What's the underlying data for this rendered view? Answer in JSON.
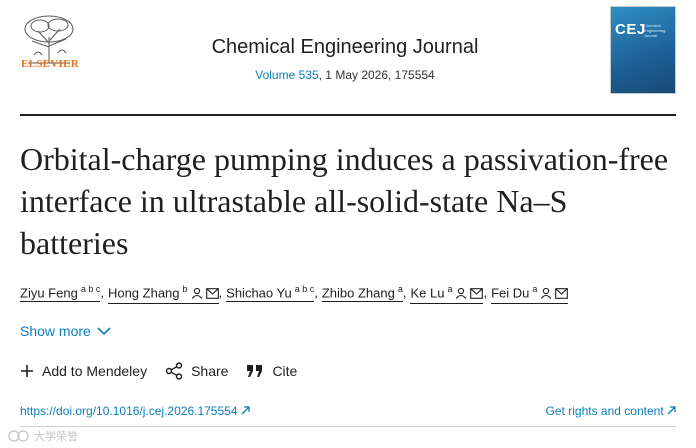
{
  "header": {
    "publisher_logo_text": "ELSEVIER",
    "journal_title": "Chemical Engineering Journal",
    "volume_link": "Volume 535",
    "issue_info": ", 1 May 2026, 175554",
    "cover_abbrev": "CEJ",
    "cover_subtitle": "Chemical Engineering Journal"
  },
  "article": {
    "title": "Orbital-charge pumping induces a passivation-free interface in ultrastable all-solid-state Na–S batteries"
  },
  "authors": [
    {
      "name": "Ziyu Feng",
      "affil": "a b c",
      "corresponding": false
    },
    {
      "name": "Hong Zhang",
      "affil": "b",
      "corresponding": true
    },
    {
      "name": "Shichao Yu",
      "affil": "a b c",
      "corresponding": false
    },
    {
      "name": "Zhibo Zhang",
      "affil": "a",
      "corresponding": false
    },
    {
      "name": "Ke Lu",
      "affil": "a",
      "corresponding": true
    },
    {
      "name": "Fei Du",
      "affil": "a",
      "corresponding": true
    }
  ],
  "show_more_label": "Show more",
  "toolbar": {
    "mendeley": "Add to Mendeley",
    "share": "Share",
    "cite": "Cite"
  },
  "links": {
    "doi": "https://doi.org/10.1016/j.cej.2026.175554",
    "rights": "Get rights and content"
  },
  "watermark": "大学荣誉",
  "colors": {
    "link": "#0c7dbb",
    "elsevier_orange": "#e9711c",
    "text": "#1f1f1f"
  }
}
